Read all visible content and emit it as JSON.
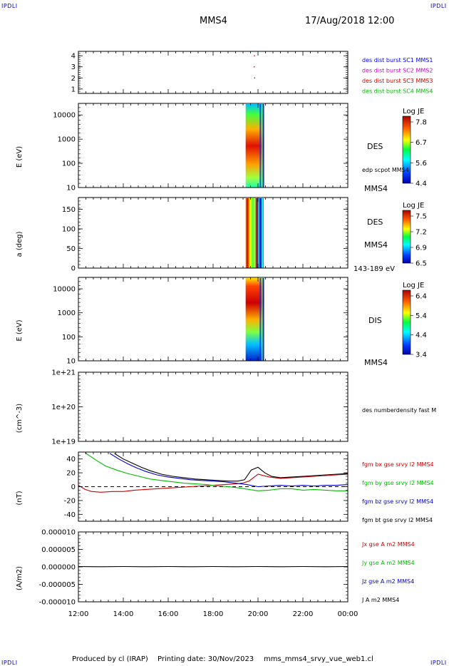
{
  "header": {
    "corner_left": "IPDLI",
    "corner_right": "IPDLI",
    "spacecraft": "MMS4",
    "datetime": "17/Aug/2018 12:00"
  },
  "footer": {
    "produced_by": "Produced by cl (IRAP)",
    "printing_date": "Printing date: 30/Nov/2023",
    "filename": "mms_mms4_srvy_vue_web1.cl",
    "corner_left": "IPDLI",
    "corner_right": "IPDLI"
  },
  "time_axis": {
    "ticks": [
      "12:00",
      "14:00",
      "16:00",
      "18:00",
      "20:00",
      "22:00",
      "00:00"
    ],
    "start_hour": 12,
    "end_hour": 24
  },
  "chart_data": [
    {
      "type": "scatter",
      "panel": "burst",
      "ylabel": "",
      "ylim": [
        0.6,
        4.4
      ],
      "yticks": [
        "1",
        "2",
        "3",
        "4"
      ],
      "legend": [
        {
          "label": "des dist burst SC1 MMS1",
          "color": "#0000ff"
        },
        {
          "label": "des dist burst SC2 MMS2",
          "color": "#cc00cc"
        },
        {
          "label": "des dist burst SC3 MMS3",
          "color": "#cc0000"
        },
        {
          "label": "des dist burst SC4 MMS4",
          "color": "#00bb00"
        }
      ],
      "points": [
        {
          "x_hour": 19.83,
          "y": 3,
          "color": "#cc0000"
        },
        {
          "x_hour": 19.85,
          "y": 2,
          "color": "#cc0000"
        },
        {
          "x_hour": 19.84,
          "y": 4,
          "color": "#cc0000"
        }
      ]
    },
    {
      "type": "heatmap",
      "panel": "des_energy",
      "ylabel": "E (eV)",
      "yscale": "log",
      "ylim": [
        10,
        30000
      ],
      "yticks": [
        "10",
        "100",
        "1000",
        "10000"
      ],
      "right_labels": [
        "DES",
        "edp scpot MMS4",
        "MMS4"
      ],
      "colorbar": {
        "title": "Log JE",
        "ticks": [
          "7.8",
          "6.7",
          "5.6",
          "4.4"
        ]
      },
      "x_start_hour": 19.45,
      "x_end_hour": 20.25
    },
    {
      "type": "heatmap",
      "panel": "des_pitch",
      "ylabel": "a (deg)",
      "ylim": [
        0,
        180
      ],
      "yticks": [
        "0",
        "50",
        "100",
        "150"
      ],
      "right_labels": [
        "DES",
        "MMS4",
        "143-189 eV"
      ],
      "colorbar": {
        "title": "Log JE",
        "ticks": [
          "7.5",
          "7.2",
          "6.9",
          "6.5"
        ]
      },
      "x_start_hour": 19.45,
      "x_end_hour": 20.25
    },
    {
      "type": "heatmap",
      "panel": "dis_energy",
      "ylabel": "E (eV)",
      "yscale": "log",
      "ylim": [
        10,
        30000
      ],
      "yticks": [
        "10",
        "100",
        "1000",
        "10000"
      ],
      "right_labels": [
        "DIS",
        "MMS4"
      ],
      "colorbar": {
        "title": "Log JE",
        "ticks": [
          "6.4",
          "5.4",
          "4.4",
          "3.4"
        ]
      },
      "x_start_hour": 19.45,
      "x_end_hour": 20.25
    },
    {
      "type": "line",
      "panel": "density",
      "ylabel": "(cm^-3)",
      "yscale": "log",
      "ylim": [
        1e+19,
        1e+21
      ],
      "yticks": [
        "1e+19",
        "1e+20",
        "1e+21"
      ],
      "right_labels": [
        "des numberdensity fast M"
      ],
      "series": []
    },
    {
      "type": "line",
      "panel": "magnetic_field",
      "ylabel": "(nT)",
      "ylim": [
        -50,
        50
      ],
      "yticks": [
        "-40",
        "-20",
        "0",
        "20",
        "40"
      ],
      "legend": [
        {
          "label": "fgm bx gse srvy l2 MMS4",
          "color": "#cc0000"
        },
        {
          "label": "fgm by gse srvy l2 MMS4",
          "color": "#00bb00"
        },
        {
          "label": "fgm bz gse srvy l2 MMS4",
          "color": "#0000cc"
        },
        {
          "label": "fgm bt gse srvy l2 MMS4",
          "color": "#000000"
        }
      ],
      "series": [
        {
          "color": "#cc0000",
          "x": [
            12.0,
            12.3,
            12.6,
            13.0,
            13.5,
            14.0,
            14.5,
            15.0,
            15.5,
            16.0,
            16.5,
            17.0,
            17.5,
            18.0,
            18.5,
            19.0,
            19.3,
            19.6,
            20.0,
            20.5,
            21.0,
            21.5,
            22.0,
            22.5,
            23.0,
            23.5,
            24.0
          ],
          "y": [
            2,
            -4,
            -7,
            -8,
            -7,
            -7,
            -5,
            -4,
            -3,
            -2,
            -1,
            0,
            1,
            2,
            3,
            4,
            5,
            8,
            18,
            14,
            12,
            13,
            14,
            15,
            16,
            17,
            18
          ]
        },
        {
          "color": "#00bb00",
          "x": [
            12.3,
            12.8,
            13.2,
            13.7,
            14.2,
            14.7,
            15.2,
            15.7,
            16.2,
            16.7,
            17.2,
            17.7,
            18.2,
            18.7,
            19.2,
            19.6,
            20.0,
            20.5,
            21.0,
            21.5,
            22.0,
            22.5,
            23.0,
            23.5,
            24.0
          ],
          "y": [
            50,
            38,
            30,
            24,
            19,
            15,
            11,
            9,
            7,
            5,
            4,
            3,
            1,
            0,
            -2,
            -4,
            -6,
            -5,
            -3,
            -3,
            -5,
            -4,
            -5,
            -6,
            -6
          ]
        },
        {
          "color": "#0000cc",
          "x": [
            13.4,
            13.8,
            14.2,
            14.6,
            15.0,
            15.5,
            16.0,
            16.5,
            17.0,
            17.5,
            18.0,
            18.5,
            19.0,
            19.5,
            20.0,
            20.5,
            21.0,
            21.5,
            22.0,
            22.5,
            23.0,
            23.5,
            24.0
          ],
          "y": [
            48,
            40,
            33,
            27,
            22,
            17,
            14,
            12,
            10,
            9,
            8,
            7,
            5,
            3,
            0,
            1,
            2,
            1,
            2,
            1,
            2,
            2,
            3
          ]
        },
        {
          "color": "#000000",
          "x": [
            13.6,
            14.0,
            14.4,
            14.8,
            15.2,
            15.7,
            16.2,
            16.7,
            17.2,
            17.7,
            18.2,
            18.7,
            19.1,
            19.4,
            19.7,
            20.0,
            20.3,
            20.6,
            21.0,
            21.5,
            22.0,
            22.5,
            23.0,
            23.5,
            24.0
          ],
          "y": [
            48,
            40,
            34,
            28,
            23,
            18,
            15,
            13,
            11,
            10,
            9,
            8,
            8,
            10,
            24,
            28,
            20,
            15,
            13,
            14,
            15,
            16,
            17,
            18,
            19
          ]
        }
      ]
    },
    {
      "type": "line",
      "panel": "current_density",
      "ylabel": "(A/m2)",
      "ylim": [
        -1e-05,
        1e-05
      ],
      "yticks": [
        "-0.000010",
        "-0.000005",
        "0.000000",
        "0.000005",
        "0.000010"
      ],
      "legend": [
        {
          "label": "Jx gse A m2 MMS4",
          "color": "#cc0000"
        },
        {
          "label": "Jy gse A m2 MMS4",
          "color": "#00bb00"
        },
        {
          "label": "Jz gse A m2 MMS4",
          "color": "#0000cc"
        },
        {
          "label": "J A m2 MMS4",
          "color": "#000000"
        }
      ],
      "series": [
        {
          "color": "#000000",
          "x": [
            12.0,
            13.0,
            14.0,
            15.0,
            16.0,
            17.0,
            18.0,
            19.0,
            20.0,
            21.0,
            22.0,
            23.0,
            24.0
          ],
          "y": [
            1e-07,
            5e-08,
            1e-07,
            5e-08,
            1e-07,
            5e-08,
            1e-07,
            5e-08,
            1e-07,
            5e-08,
            1e-07,
            5e-08,
            1e-07
          ]
        }
      ]
    }
  ]
}
